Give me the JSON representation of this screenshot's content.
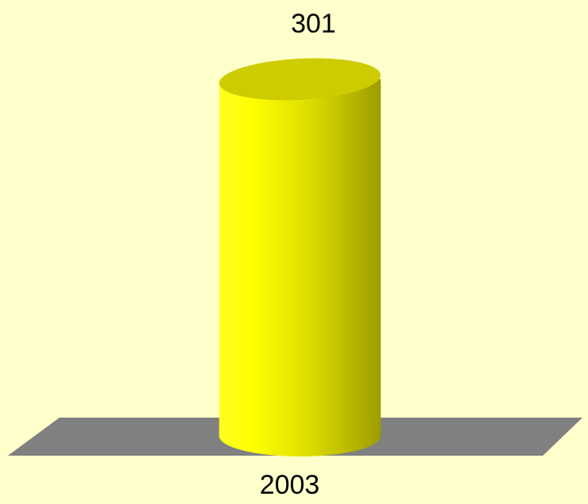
{
  "chart_data": {
    "type": "bar",
    "categories": [
      "2003"
    ],
    "values": [
      301
    ],
    "color": "#ffff00"
  }
}
